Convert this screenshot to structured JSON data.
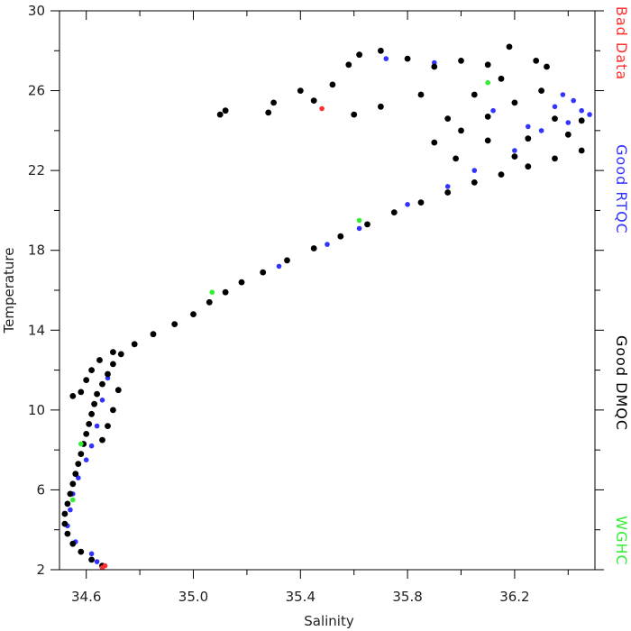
{
  "chart_data": {
    "type": "scatter",
    "xlabel": "Salinity",
    "ylabel": "Temperature",
    "xlim": [
      34.5,
      36.5
    ],
    "ylim": [
      2,
      30
    ],
    "x_ticks": [
      {
        "value": 34.6,
        "label": "34.6"
      },
      {
        "value": 35.0,
        "label": "35.0"
      },
      {
        "value": 35.4,
        "label": "35.4"
      },
      {
        "value": 35.8,
        "label": "35.8"
      },
      {
        "value": 36.2,
        "label": "36.2"
      }
    ],
    "x_minor_ticks": [
      34.8,
      35.2,
      35.6,
      36.0,
      36.4
    ],
    "y_ticks": [
      {
        "value": 2,
        "label": "2"
      },
      {
        "value": 6,
        "label": "6"
      },
      {
        "value": 10,
        "label": "10"
      },
      {
        "value": 14,
        "label": "14"
      },
      {
        "value": 18,
        "label": "18"
      },
      {
        "value": 22,
        "label": "22"
      },
      {
        "value": 26,
        "label": "26"
      },
      {
        "value": 30,
        "label": "30"
      }
    ],
    "y_minor_ticks": [
      4,
      8,
      12,
      16,
      20,
      24,
      28
    ],
    "legend_placement": "right-vertical",
    "series": [
      {
        "name": "Bad Data",
        "color": "#ff3030"
      },
      {
        "name": "Good RTQC",
        "color": "#3333ff"
      },
      {
        "name": "Good DMQC",
        "color": "#000000"
      },
      {
        "name": "WGHC",
        "color": "#33ee33"
      }
    ],
    "points": {
      "Bad Data": [
        [
          34.66,
          2.1
        ],
        [
          34.67,
          2.2
        ],
        [
          35.48,
          25.1
        ]
      ],
      "Good RTQC": [
        [
          34.53,
          4.2
        ],
        [
          34.54,
          5.0
        ],
        [
          34.55,
          5.8
        ],
        [
          34.57,
          6.6
        ],
        [
          34.6,
          7.5
        ],
        [
          34.62,
          8.2
        ],
        [
          34.64,
          9.2
        ],
        [
          34.66,
          10.5
        ],
        [
          34.68,
          11.6
        ],
        [
          34.62,
          2.8
        ],
        [
          34.64,
          2.4
        ],
        [
          34.56,
          3.4
        ],
        [
          35.32,
          17.2
        ],
        [
          35.5,
          18.3
        ],
        [
          35.62,
          19.1
        ],
        [
          35.8,
          20.3
        ],
        [
          35.95,
          21.2
        ],
        [
          36.05,
          22.0
        ],
        [
          36.2,
          23.0
        ],
        [
          36.3,
          24.0
        ],
        [
          36.35,
          25.2
        ],
        [
          36.42,
          25.5
        ],
        [
          36.45,
          25.0
        ],
        [
          36.4,
          24.4
        ],
        [
          36.48,
          24.8
        ],
        [
          36.38,
          25.8
        ],
        [
          36.25,
          24.2
        ],
        [
          35.9,
          27.4
        ],
        [
          36.12,
          25.0
        ],
        [
          35.72,
          27.6
        ]
      ],
      "WGHC": [
        [
          35.07,
          15.9
        ],
        [
          34.58,
          8.3
        ],
        [
          36.1,
          26.4
        ],
        [
          35.62,
          19.5
        ],
        [
          34.55,
          5.5
        ]
      ],
      "Good DMQC": [
        [
          34.66,
          2.2
        ],
        [
          34.62,
          2.5
        ],
        [
          34.58,
          2.9
        ],
        [
          34.55,
          3.3
        ],
        [
          34.53,
          3.8
        ],
        [
          34.52,
          4.3
        ],
        [
          34.52,
          4.8
        ],
        [
          34.53,
          5.3
        ],
        [
          34.54,
          5.8
        ],
        [
          34.55,
          6.3
        ],
        [
          34.56,
          6.8
        ],
        [
          34.57,
          7.3
        ],
        [
          34.58,
          7.8
        ],
        [
          34.59,
          8.3
        ],
        [
          34.6,
          8.8
        ],
        [
          34.61,
          9.3
        ],
        [
          34.62,
          9.8
        ],
        [
          34.63,
          10.3
        ],
        [
          34.64,
          10.8
        ],
        [
          34.66,
          11.3
        ],
        [
          34.68,
          11.8
        ],
        [
          34.7,
          12.3
        ],
        [
          34.73,
          12.8
        ],
        [
          34.78,
          13.3
        ],
        [
          34.85,
          13.8
        ],
        [
          34.93,
          14.3
        ],
        [
          35.0,
          14.8
        ],
        [
          35.06,
          15.4
        ],
        [
          35.12,
          15.9
        ],
        [
          35.18,
          16.4
        ],
        [
          35.26,
          16.9
        ],
        [
          35.35,
          17.5
        ],
        [
          35.45,
          18.1
        ],
        [
          35.55,
          18.7
        ],
        [
          35.65,
          19.3
        ],
        [
          35.75,
          19.9
        ],
        [
          35.85,
          20.4
        ],
        [
          35.95,
          20.9
        ],
        [
          36.05,
          21.4
        ],
        [
          36.15,
          21.8
        ],
        [
          36.25,
          22.2
        ],
        [
          36.35,
          22.6
        ],
        [
          36.45,
          23.0
        ],
        [
          34.55,
          10.7
        ],
        [
          34.58,
          10.9
        ],
        [
          34.6,
          11.5
        ],
        [
          34.62,
          12.0
        ],
        [
          34.65,
          12.5
        ],
        [
          34.7,
          12.9
        ],
        [
          34.72,
          11.0
        ],
        [
          34.7,
          10.0
        ],
        [
          34.68,
          9.2
        ],
        [
          34.66,
          8.5
        ],
        [
          35.1,
          24.8
        ],
        [
          35.12,
          25.0
        ],
        [
          35.28,
          24.9
        ],
        [
          35.3,
          25.4
        ],
        [
          35.4,
          26.0
        ],
        [
          35.45,
          25.5
        ],
        [
          35.52,
          26.3
        ],
        [
          35.58,
          27.3
        ],
        [
          35.62,
          27.8
        ],
        [
          35.7,
          28.0
        ],
        [
          35.8,
          27.6
        ],
        [
          35.9,
          27.2
        ],
        [
          36.0,
          27.5
        ],
        [
          36.1,
          27.3
        ],
        [
          36.18,
          28.2
        ],
        [
          36.28,
          27.5
        ],
        [
          36.32,
          27.2
        ],
        [
          36.3,
          26.0
        ],
        [
          36.2,
          25.4
        ],
        [
          36.1,
          24.7
        ],
        [
          36.0,
          24.0
        ],
        [
          35.9,
          23.4
        ],
        [
          35.95,
          24.6
        ],
        [
          36.05,
          25.8
        ],
        [
          36.15,
          26.6
        ],
        [
          35.85,
          25.8
        ],
        [
          35.7,
          25.2
        ],
        [
          35.6,
          24.8
        ],
        [
          36.25,
          23.6
        ],
        [
          36.35,
          24.6
        ],
        [
          36.4,
          23.8
        ],
        [
          36.45,
          24.5
        ],
        [
          36.2,
          22.7
        ],
        [
          36.1,
          23.5
        ],
        [
          35.98,
          22.6
        ]
      ]
    }
  }
}
